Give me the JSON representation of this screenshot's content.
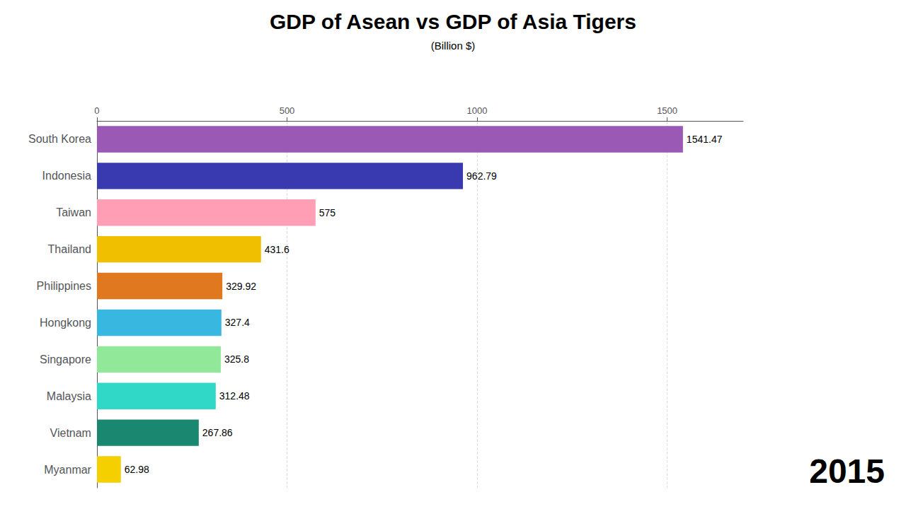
{
  "chart_data": {
    "type": "bar",
    "orientation": "horizontal",
    "title": "GDP of Asean vs GDP of Asia Tigers",
    "subtitle": "(Billion $)",
    "annotation": "2015",
    "categories": [
      "South Korea",
      "Indonesia",
      "Taiwan",
      "Thailand",
      "Philippines",
      "Hongkong",
      "Singapore",
      "Malaysia",
      "Vietnam",
      "Myanmar"
    ],
    "values": [
      1541.47,
      962.79,
      575,
      431.6,
      329.92,
      327.4,
      325.8,
      312.48,
      267.86,
      62.98
    ],
    "colors": [
      "#9b59b6",
      "#3a3ab0",
      "#ff9eb5",
      "#f0c000",
      "#e07820",
      "#38b8e0",
      "#90e898",
      "#30d8c8",
      "#1a8870",
      "#f5d000"
    ],
    "xlim": [
      0,
      1700
    ],
    "xticks": [
      0,
      500,
      1000,
      1500
    ],
    "grid": true,
    "data_labels": true
  }
}
